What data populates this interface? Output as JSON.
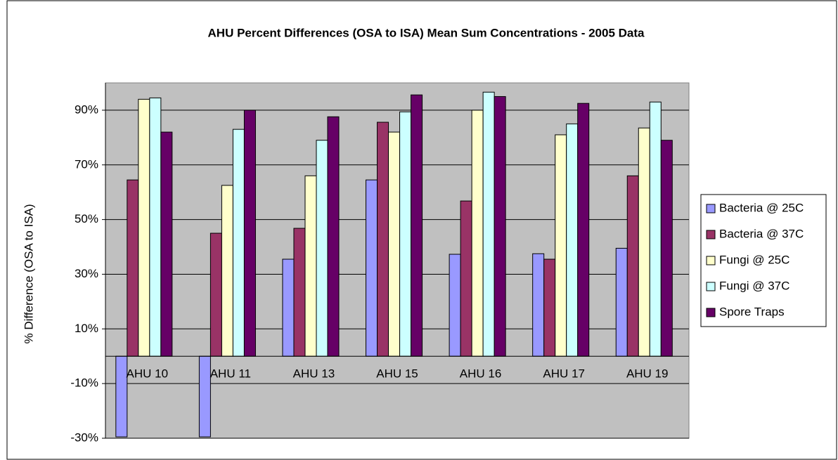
{
  "chart_data": {
    "type": "bar",
    "title": "AHU Percent Differences (OSA to ISA) Mean Sum Concentrations - 2005 Data",
    "y_label": "% Difference (OSA to ISA)",
    "categories": [
      "AHU 10",
      "AHU 11",
      "AHU 13",
      "AHU 15",
      "AHU 16",
      "AHU 17",
      "AHU 19"
    ],
    "series": [
      {
        "name": "Bacteria @ 25C",
        "color": "#9999ff",
        "values": [
          -29.5,
          -29.5,
          35.5,
          64.5,
          37.3,
          37.5,
          39.5
        ]
      },
      {
        "name": "Bacteria @ 37C",
        "color": "#993366",
        "values": [
          64.5,
          45,
          46.8,
          85.6,
          56.8,
          35.5,
          66
        ]
      },
      {
        "name": "Fungi @ 25C",
        "color": "#ffffcc",
        "values": [
          94,
          62.5,
          66,
          82,
          90,
          81,
          83.5
        ]
      },
      {
        "name": "Fungi @ 37C",
        "color": "#ccffff",
        "values": [
          94.5,
          83,
          79,
          89.4,
          96.6,
          85,
          93
        ]
      },
      {
        "name": "Spore Traps",
        "color": "#660066",
        "values": [
          82,
          90,
          87.6,
          95.6,
          95,
          92.5,
          79
        ]
      }
    ],
    "ylim": [
      -30,
      100
    ],
    "yticks": [
      {
        "value": -30,
        "label": "-30%"
      },
      {
        "value": -10,
        "label": "-10%"
      },
      {
        "value": 10,
        "label": "10%"
      },
      {
        "value": 30,
        "label": "30%"
      },
      {
        "value": 50,
        "label": "50%"
      },
      {
        "value": 70,
        "label": "70%"
      },
      {
        "value": 90,
        "label": "90%"
      }
    ],
    "grid": true,
    "legend": "right",
    "plot_background": "#c0c0c0"
  }
}
